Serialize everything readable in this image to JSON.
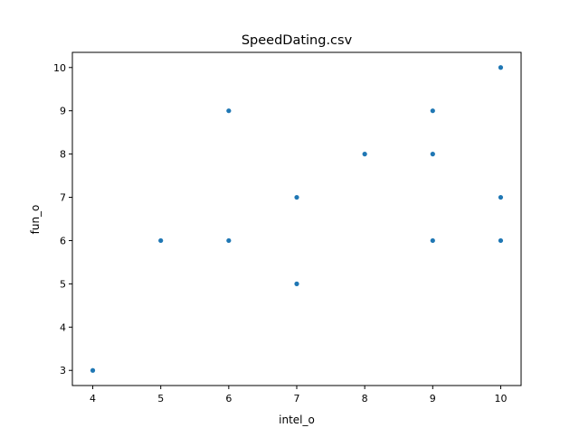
{
  "chart_data": {
    "type": "scatter",
    "title": "SpeedDating.csv",
    "xlabel": "intel_o",
    "ylabel": "fun_o",
    "xlim": [
      3.7,
      10.3
    ],
    "ylim": [
      2.65,
      10.35
    ],
    "xticks": [
      4,
      5,
      6,
      7,
      8,
      9,
      10
    ],
    "yticks": [
      3,
      4,
      5,
      6,
      7,
      8,
      9,
      10
    ],
    "grid": false,
    "marker_color": "#1f77b4",
    "points": [
      {
        "x": 4,
        "y": 3
      },
      {
        "x": 5,
        "y": 6
      },
      {
        "x": 6,
        "y": 9
      },
      {
        "x": 6,
        "y": 6
      },
      {
        "x": 7,
        "y": 7
      },
      {
        "x": 7,
        "y": 5
      },
      {
        "x": 8,
        "y": 8
      },
      {
        "x": 9,
        "y": 9
      },
      {
        "x": 9,
        "y": 8
      },
      {
        "x": 9,
        "y": 6
      },
      {
        "x": 10,
        "y": 10
      },
      {
        "x": 10,
        "y": 7
      },
      {
        "x": 10,
        "y": 6
      }
    ]
  }
}
